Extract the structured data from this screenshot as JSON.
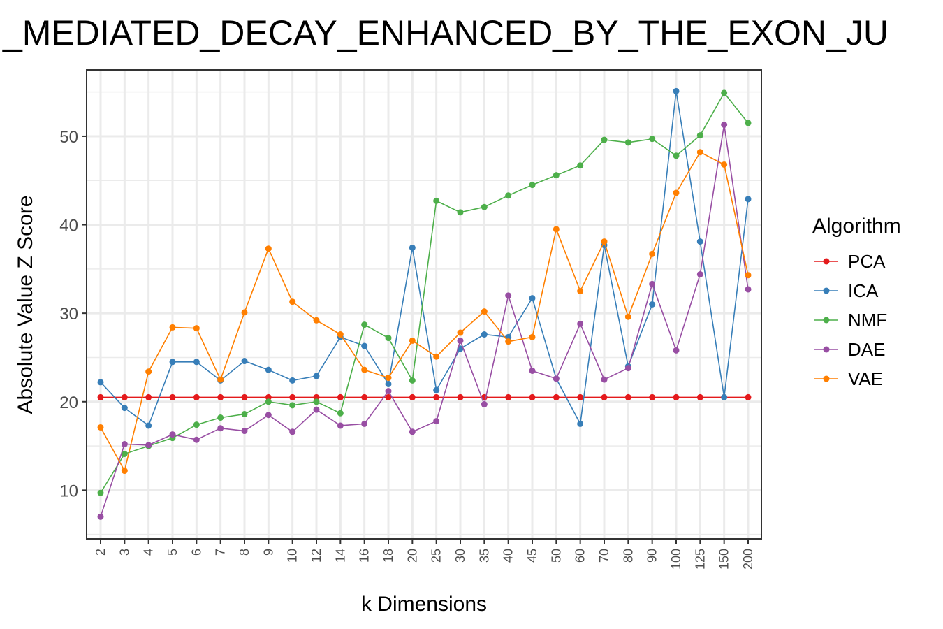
{
  "chart_data": {
    "type": "line",
    "title": "_MEDIATED_DECAY_ENHANCED_BY_THE_EXON_JU",
    "xlabel": "k Dimensions",
    "ylabel": "Absolute Value Z Score",
    "categories": [
      "2",
      "3",
      "4",
      "5",
      "6",
      "7",
      "8",
      "9",
      "10",
      "12",
      "14",
      "16",
      "18",
      "20",
      "25",
      "30",
      "35",
      "40",
      "45",
      "50",
      "60",
      "70",
      "80",
      "90",
      "100",
      "125",
      "150",
      "200"
    ],
    "yticks": [
      10,
      20,
      30,
      40,
      50
    ],
    "ylim": [
      4.5,
      57.5
    ],
    "grid": true,
    "legend": {
      "title": "Algorithm",
      "position": "right"
    },
    "series": [
      {
        "name": "PCA",
        "color": "#e41a1c",
        "values": [
          20.5,
          20.5,
          20.5,
          20.5,
          20.5,
          20.5,
          20.5,
          20.5,
          20.5,
          20.5,
          20.5,
          20.5,
          20.5,
          20.5,
          20.5,
          20.5,
          20.5,
          20.5,
          20.5,
          20.5,
          20.5,
          20.5,
          20.5,
          20.5,
          20.5,
          20.5,
          20.5,
          20.5
        ]
      },
      {
        "name": "ICA",
        "color": "#377eb8",
        "values": [
          22.2,
          19.3,
          17.3,
          24.5,
          24.5,
          22.4,
          24.6,
          23.6,
          22.4,
          22.9,
          27.3,
          26.3,
          22.0,
          37.4,
          21.3,
          26.0,
          27.6,
          27.3,
          31.7,
          22.6,
          17.5,
          37.7,
          24.0,
          31.0,
          55.1,
          38.1,
          20.5,
          42.9
        ]
      },
      {
        "name": "NMF",
        "color": "#4daf4a",
        "values": [
          9.7,
          14.1,
          15.0,
          15.9,
          17.4,
          18.2,
          18.6,
          20.0,
          19.6,
          20.0,
          18.7,
          28.7,
          27.2,
          22.4,
          42.7,
          41.4,
          42.0,
          43.3,
          44.5,
          45.6,
          46.7,
          49.6,
          49.3,
          49.7,
          47.8,
          50.1,
          54.9,
          51.5
        ]
      },
      {
        "name": "DAE",
        "color": "#984ea3",
        "values": [
          7.0,
          15.2,
          15.1,
          16.3,
          15.7,
          17.0,
          16.7,
          18.5,
          16.6,
          19.1,
          17.3,
          17.5,
          21.2,
          16.6,
          17.8,
          26.9,
          19.7,
          32.0,
          23.5,
          22.6,
          28.8,
          22.5,
          23.8,
          33.3,
          25.8,
          34.4,
          51.3,
          32.7
        ]
      },
      {
        "name": "VAE",
        "color": "#ff7f00",
        "values": [
          17.1,
          12.2,
          23.4,
          28.4,
          28.3,
          22.5,
          30.1,
          37.3,
          31.3,
          29.2,
          27.6,
          23.6,
          22.7,
          26.9,
          25.1,
          27.8,
          30.2,
          26.8,
          27.3,
          39.5,
          32.5,
          38.1,
          29.6,
          36.7,
          43.6,
          48.2,
          46.8,
          34.3
        ]
      }
    ]
  }
}
